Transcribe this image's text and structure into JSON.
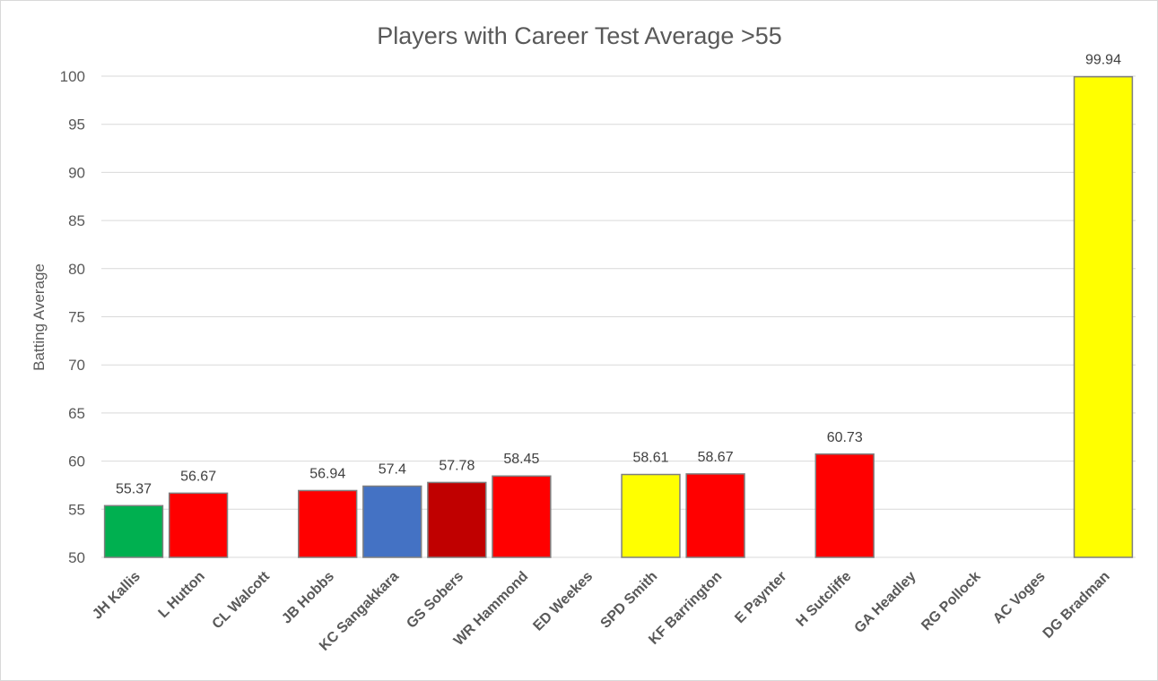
{
  "chart_data": {
    "type": "bar",
    "title": "Players with Career Test Average >55",
    "xlabel": "",
    "ylabel": "Batting Average",
    "ylim": [
      50,
      100
    ],
    "yticks": [
      50,
      55,
      60,
      65,
      70,
      75,
      80,
      85,
      90,
      95,
      100
    ],
    "grid": true,
    "legend": "none",
    "categories": [
      "JH Kallis",
      "L Hutton",
      "CL Walcott",
      "JB Hobbs",
      "KC Sangakkara",
      "GS Sobers",
      "WR Hammond",
      "ED Weekes",
      "SPD Smith",
      "KF Barrington",
      "E Paynter",
      "H Sutcliffe",
      "GA Headley",
      "RG Pollock",
      "AC Voges",
      "DG Bradman"
    ],
    "values": [
      55.37,
      56.67,
      null,
      56.94,
      57.4,
      57.78,
      58.45,
      null,
      58.61,
      58.67,
      null,
      60.73,
      null,
      null,
      null,
      99.94
    ],
    "data_labels": [
      "55.37",
      "56.67",
      "",
      "56.94",
      "57.4",
      "57.78",
      "58.45",
      "",
      "58.61",
      "58.67",
      "",
      "60.73",
      "",
      "",
      "",
      "99.94"
    ],
    "colors": [
      "#00b050",
      "#ff0000",
      "#ff0000",
      "#ff0000",
      "#4472c4",
      "#c00000",
      "#ff0000",
      "#ff0000",
      "#ffff00",
      "#ff0000",
      "#ff0000",
      "#ff0000",
      "#ff0000",
      "#ff0000",
      "#ffff00",
      "#ffff00"
    ]
  }
}
